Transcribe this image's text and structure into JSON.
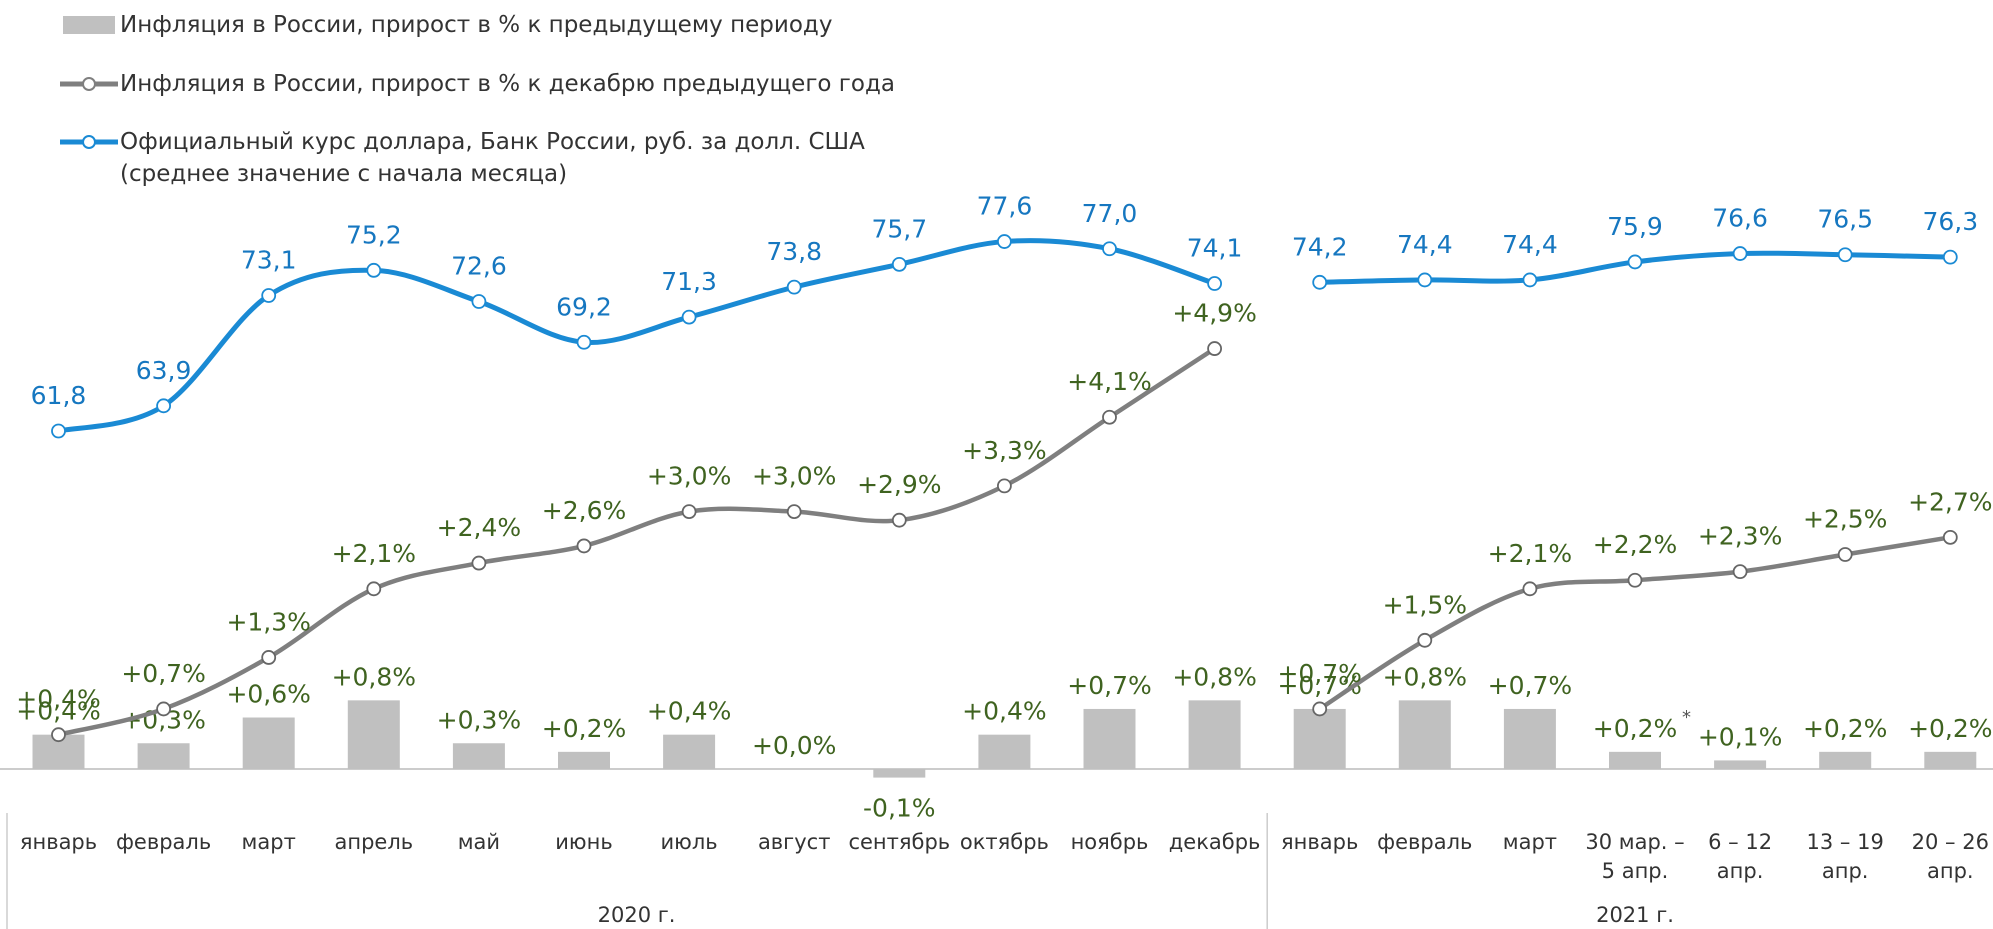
{
  "chart_data": {
    "type": "bar_line",
    "legend": [
      "Инфляция в России, прирост в % к предыдущему периоду",
      "Инфляция в России, прирост в % к декабрю предыдущего года",
      "Официальный курс доллара, Банк России, руб. за долл. США\n(среднее значение с начала месяца)"
    ],
    "categories": [
      "январь",
      "февраль",
      "март",
      "апрель",
      "май",
      "июнь",
      "июль",
      "август",
      "сентябрь",
      "октябрь",
      "ноябрь",
      "декабрь",
      "январь",
      "февраль",
      "март",
      "30 мар. –\n5 апр.",
      "6 – 12\nапр.",
      "13 – 19\nапр.",
      "20 – 26\nапр."
    ],
    "groups": [
      {
        "label": "2020 г.",
        "count": 12
      },
      {
        "label": "2021 г.",
        "count": 7
      }
    ],
    "ylim": [
      -1.5,
      5
    ],
    "y2lim": [
      50,
      80
    ],
    "series": [
      {
        "name": "Инфляция в России, прирост в % к предыдущему периоду",
        "kind": "bar",
        "color": "#c0c0c0",
        "label_color": "#3f6320",
        "values": [
          0.4,
          0.3,
          0.6,
          0.8,
          0.3,
          0.2,
          0.4,
          0.0,
          -0.1,
          0.4,
          0.7,
          0.8,
          0.7,
          0.8,
          0.7,
          0.2,
          0.1,
          0.2,
          0.2
        ],
        "value_labels": [
          "+0,4%",
          "+0,3%",
          "+0,6%",
          "+0,8%",
          "+0,3%",
          "+0,2%",
          "+0,4%",
          "+0,0%",
          "-0,1%",
          "+0,4%",
          "+0,7%",
          "+0,8%",
          "+0,7%",
          "+0,8%",
          "+0,7%",
          "+0,2%",
          "+0,1%",
          "+0,2%",
          "+0,2%"
        ],
        "notes": [
          {
            "index": 15,
            "text": "*"
          }
        ]
      },
      {
        "name": "Инфляция в России, прирост в % к декабрю предыдущего года",
        "kind": "line",
        "color": "#7f7f7f",
        "label_color": "#3f6320",
        "values": [
          0.4,
          0.7,
          1.3,
          2.1,
          2.4,
          2.6,
          3.0,
          3.0,
          2.9,
          3.3,
          4.1,
          4.9,
          0.7,
          1.5,
          2.1,
          2.2,
          2.3,
          2.5,
          2.7
        ],
        "value_labels": [
          "+0,4%",
          "+0,7%",
          "+1,3%",
          "+2,1%",
          "+2,4%",
          "+2,6%",
          "+3,0%",
          "+3,0%",
          "+2,9%",
          "+3,3%",
          "+4,1%",
          "+4,9%",
          "+0,7%",
          "+1,5%",
          "+2,1%",
          "+2,2%",
          "+2,3%",
          "+2,5%",
          "+2,7%"
        ]
      },
      {
        "name": "Официальный курс доллара, Банк России, руб. за долл. США",
        "kind": "line",
        "axis": "y2",
        "color": "#1a8ad4",
        "label_color": "#1677c0",
        "values": [
          61.8,
          63.9,
          73.1,
          75.2,
          72.6,
          69.2,
          71.3,
          73.8,
          75.7,
          77.6,
          77.0,
          74.1,
          74.2,
          74.4,
          74.4,
          75.9,
          76.6,
          76.5,
          76.3
        ],
        "value_labels": [
          "61,8",
          "63,9",
          "73,1",
          "75,2",
          "72,6",
          "69,2",
          "71,3",
          "73,8",
          "75,7",
          "77,6",
          "77,0",
          "74,1",
          "74,2",
          "74,4",
          "74,4",
          "75,9",
          "76,6",
          "76,5",
          "76,3"
        ]
      }
    ]
  }
}
